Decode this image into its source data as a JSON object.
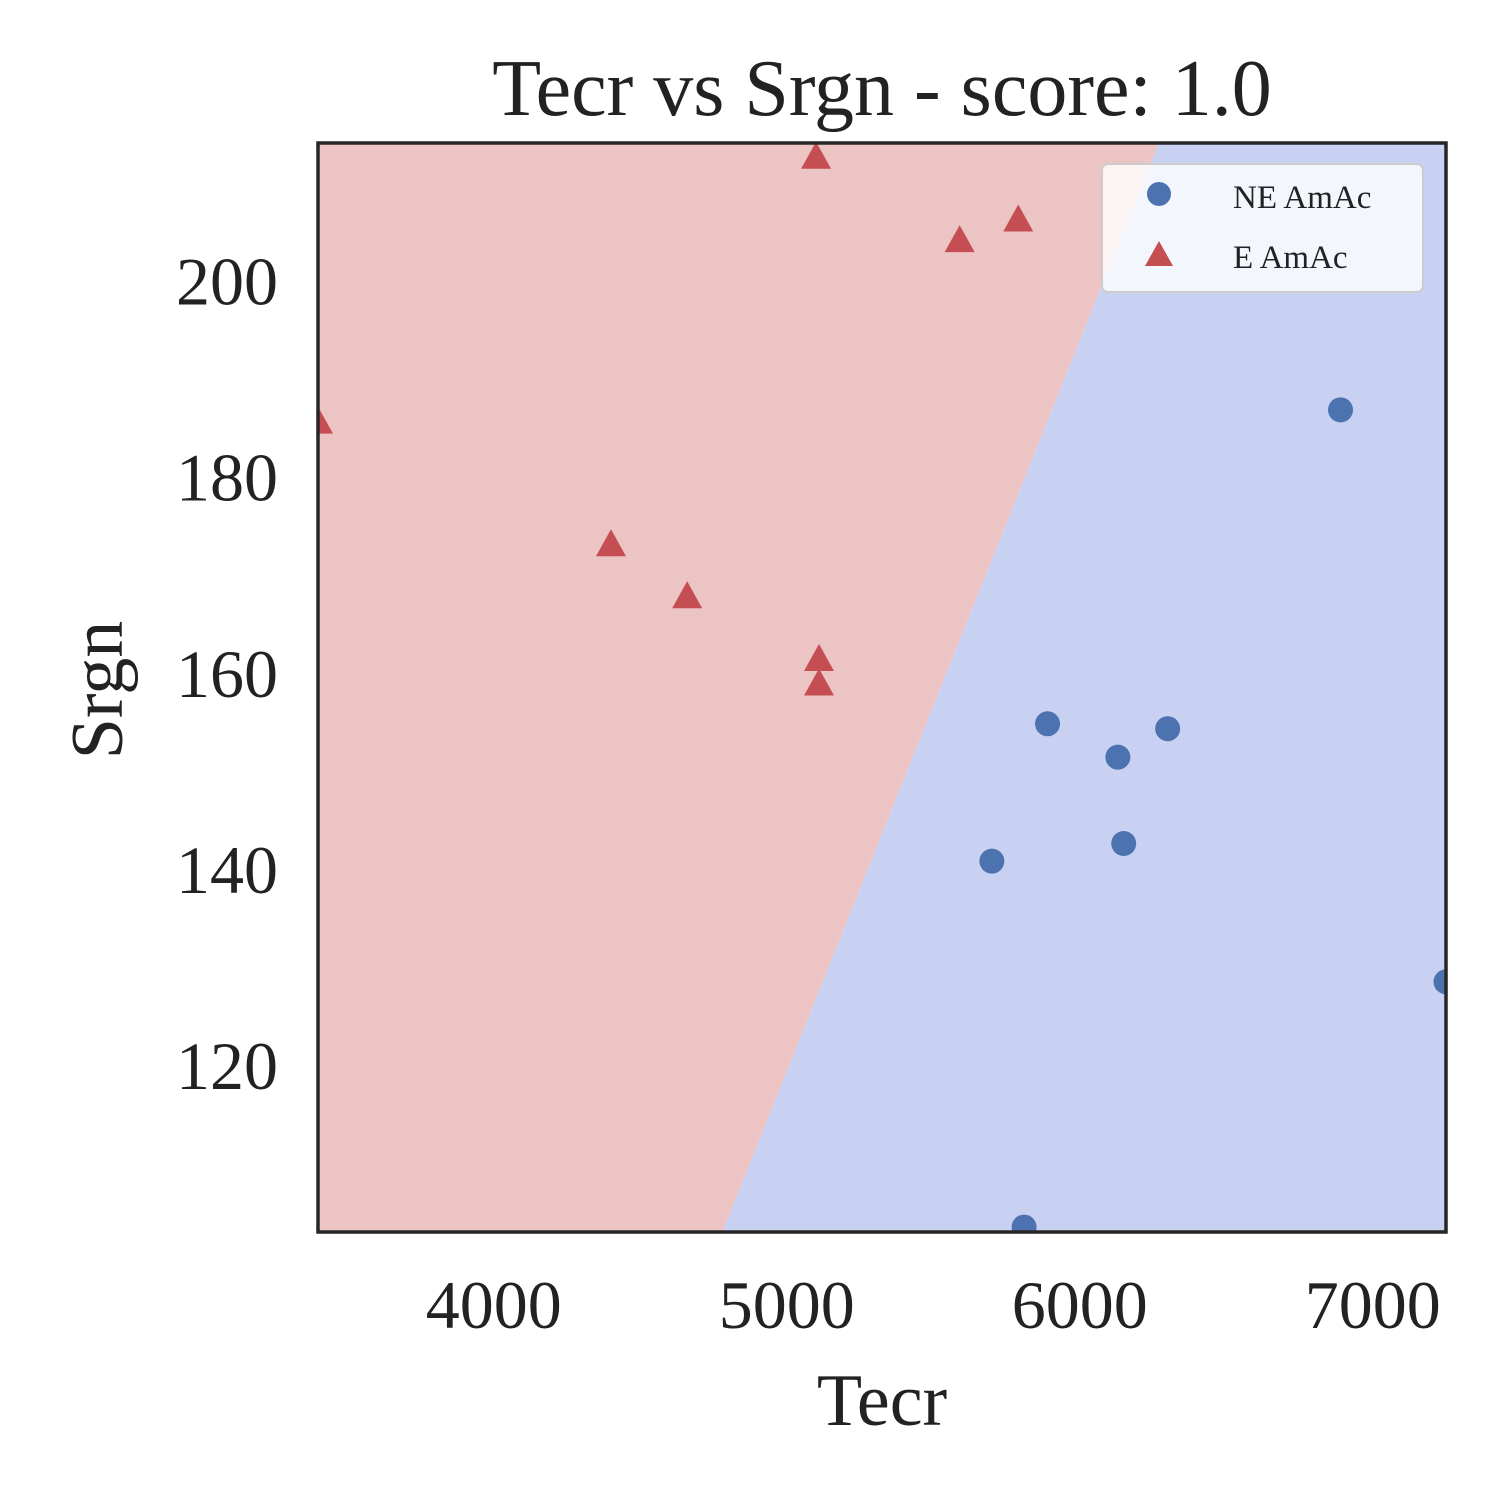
{
  "chart_data": {
    "type": "scatter",
    "title": "Tecr vs Srgn - score: 1.0",
    "xlabel": "Tecr",
    "ylabel": "Srgn",
    "xlim": [
      3400,
      7250
    ],
    "ylim": [
      103,
      214
    ],
    "xticks": [
      4000,
      5000,
      6000,
      7000
    ],
    "yticks": [
      120,
      140,
      160,
      180,
      200
    ],
    "grid": false,
    "legend_position": "top-right",
    "decision_boundary": {
      "points": [
        [
          4780,
          103
        ],
        [
          6270,
          214
        ]
      ],
      "left_class": "E AmAc",
      "right_class": "NE AmAc"
    },
    "series": [
      {
        "name": "NE AmAc",
        "marker": "circle",
        "color": "#4c72b0",
        "region_color": "#c9d1f2",
        "points": [
          [
            6890,
            186.8
          ],
          [
            5890,
            154.8
          ],
          [
            6300,
            154.3
          ],
          [
            6130,
            151.4
          ],
          [
            6150,
            142.6
          ],
          [
            5700,
            140.8
          ],
          [
            7250,
            128.5
          ],
          [
            5810,
            103.5
          ]
        ]
      },
      {
        "name": "E AmAc",
        "marker": "triangle",
        "color": "#c44e52",
        "region_color": "#edc4c4",
        "points": [
          [
            5100,
            212.5
          ],
          [
            5790,
            206.1
          ],
          [
            5590,
            204.0
          ],
          [
            3400,
            185.5
          ],
          [
            4400,
            173.0
          ],
          [
            4660,
            167.7
          ],
          [
            5110,
            161.3
          ],
          [
            5110,
            158.8
          ]
        ]
      }
    ]
  }
}
